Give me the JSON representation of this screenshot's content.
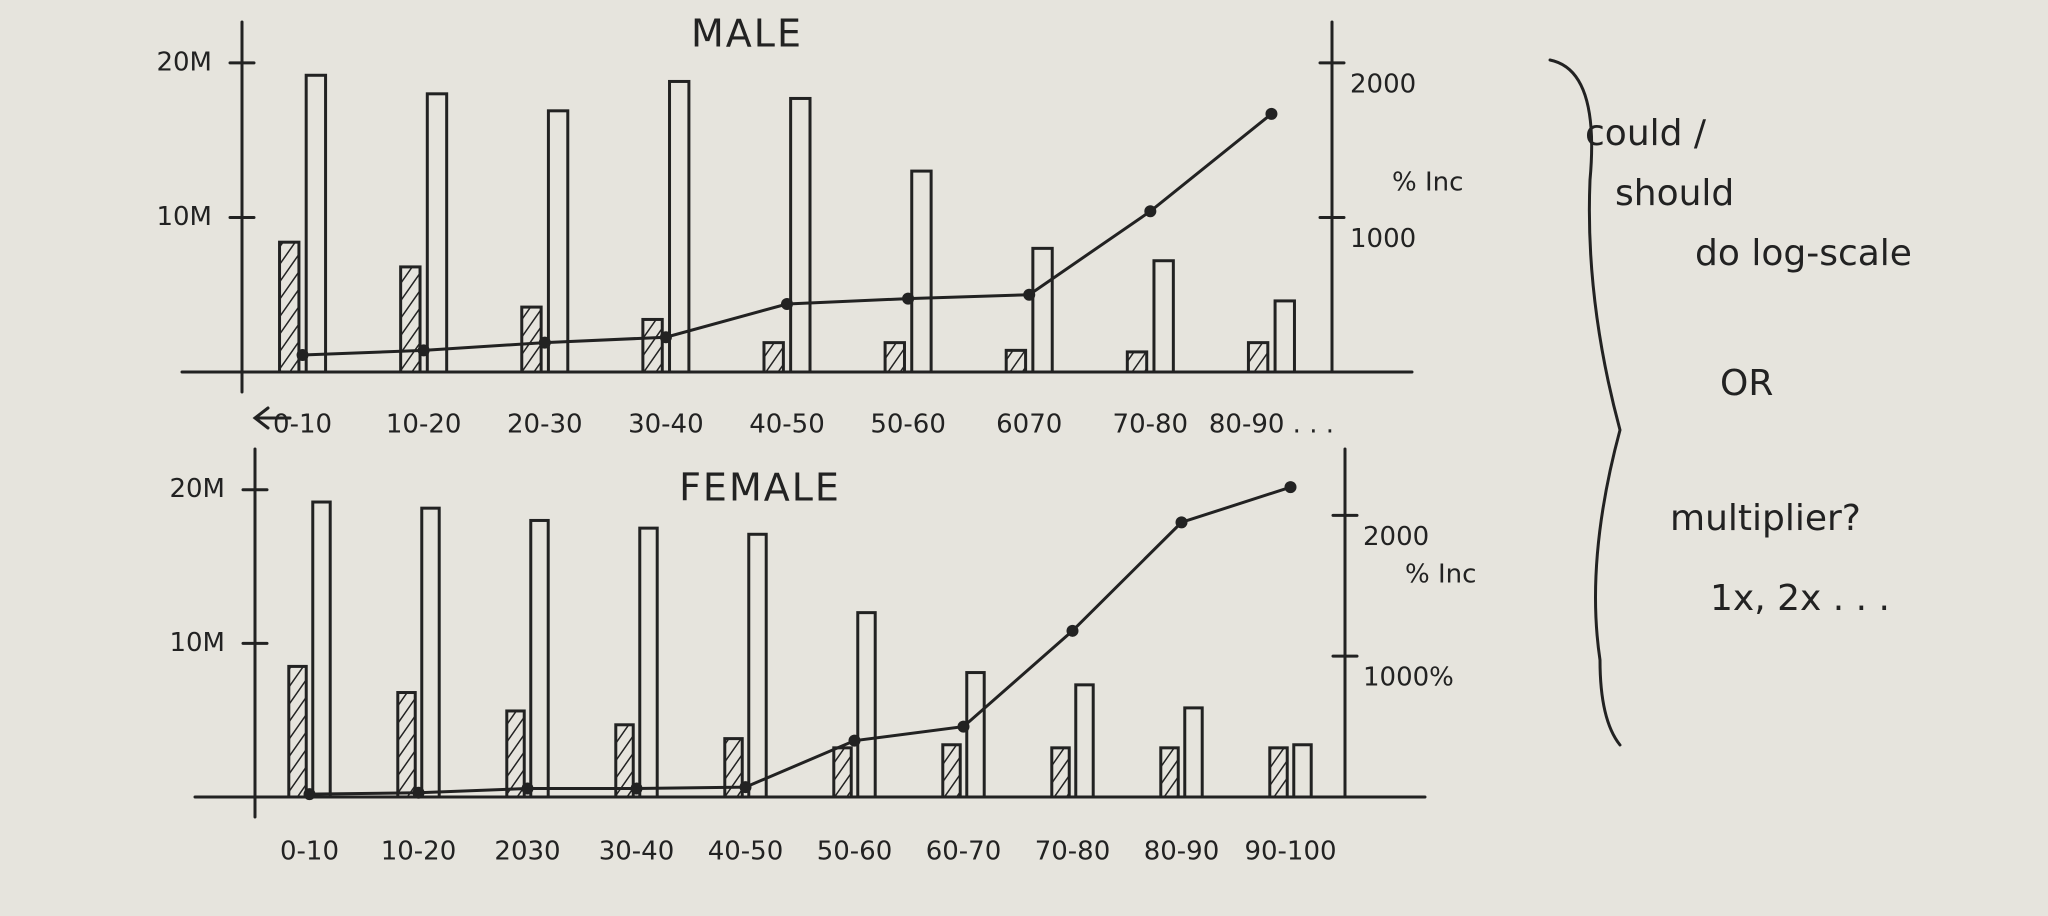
{
  "chart_data": [
    {
      "type": "combo",
      "title": "MALE",
      "y2_label": "% Inc",
      "categories": [
        "0-10",
        "10-20",
        "20-30",
        "30-40",
        "40-50",
        "50-60",
        "6070",
        "70-80",
        "80-90 . . ."
      ],
      "series": [
        {
          "type": "bar",
          "pattern": "hatch",
          "color": "#222222",
          "values": [
            8400000,
            6800000,
            4200000,
            3400000,
            1900000,
            1900000,
            1400000,
            1300000,
            1900000
          ]
        },
        {
          "type": "bar",
          "pattern": "open",
          "color": "#222222",
          "values": [
            19200000,
            18000000,
            16900000,
            18800000,
            17700000,
            13000000,
            8000000,
            7200000,
            4600000
          ]
        },
        {
          "type": "line",
          "axis": "y2",
          "color": "#222222",
          "values": [
            110,
            140,
            190,
            225,
            440,
            475,
            500,
            1040,
            1670
          ]
        }
      ],
      "ylim": [
        0,
        22000000
      ],
      "yticks": [
        {
          "value": 10000000,
          "label": "10M"
        },
        {
          "value": 20000000,
          "label": "20M"
        }
      ],
      "y2lim": [
        0,
        2200
      ],
      "y2ticks": [
        1000,
        2000
      ]
    },
    {
      "type": "combo",
      "title": "FEMALE",
      "y2_label": "% Inc",
      "categories": [
        "0-10",
        "10-20",
        "2030",
        "30-40",
        "40-50",
        "50-60",
        "60-70",
        "70-80",
        "80-90",
        "90-100"
      ],
      "series": [
        {
          "type": "bar",
          "pattern": "hatch",
          "color": "#222222",
          "values": [
            8500000,
            6800000,
            5600000,
            4700000,
            3800000,
            3200000,
            3400000,
            3200000,
            3200000,
            3200000
          ]
        },
        {
          "type": "bar",
          "pattern": "open",
          "color": "#222222",
          "values": [
            19200000,
            18800000,
            18000000,
            17500000,
            17100000,
            12000000,
            8100000,
            7300000,
            5800000,
            3400000
          ]
        },
        {
          "type": "line",
          "axis": "y2",
          "color": "#222222",
          "values": [
            20,
            30,
            60,
            60,
            70,
            400,
            500,
            1180,
            1950,
            2200
          ]
        }
      ],
      "ylim": [
        0,
        22000000
      ],
      "yticks": [
        {
          "value": 10000000,
          "label": "10M"
        },
        {
          "value": 20000000,
          "label": "20M"
        }
      ],
      "y2lim": [
        0,
        2400
      ],
      "y2ticks": [
        {
          "value": 1000,
          "label": "1000%"
        },
        2000
      ]
    }
  ],
  "annotations": [
    "could /",
    "should",
    "do log-scale",
    "OR",
    "multiplier?",
    "1x, 2x . . ."
  ]
}
